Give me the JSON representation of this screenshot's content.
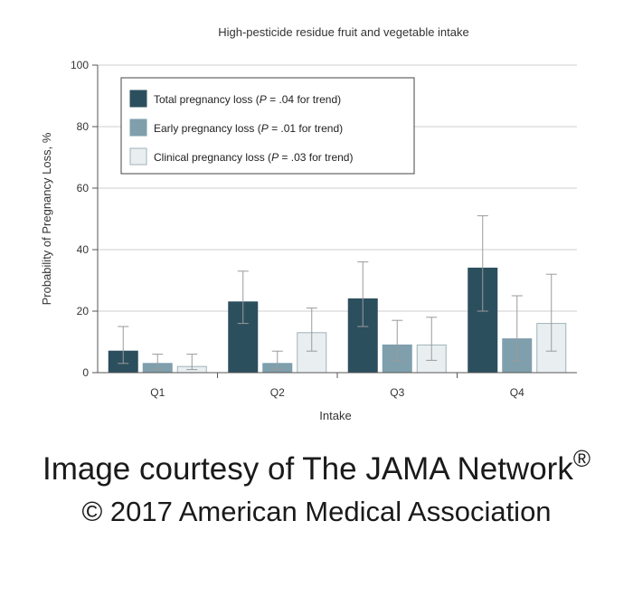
{
  "chart_data": {
    "type": "bar",
    "title": "High-pesticide residue fruit and vegetable intake",
    "xlabel": "Intake",
    "ylabel": "Probability of Pregnancy Loss, %",
    "ylim": [
      0,
      100
    ],
    "yticks": [
      0,
      20,
      40,
      60,
      80,
      100
    ],
    "categories": [
      "Q1",
      "Q2",
      "Q3",
      "Q4"
    ],
    "legend_position": "top-left",
    "series": [
      {
        "name": "Total pregnancy loss (P = .04 for trend)",
        "name_prefix": "Total pregnancy loss (",
        "name_suffix": " = .04 for trend)",
        "color": "#2c4f5e",
        "values": [
          7,
          23,
          24,
          34
        ],
        "err_low": [
          3,
          16,
          15,
          20
        ],
        "err_high": [
          15,
          33,
          36,
          51
        ]
      },
      {
        "name": "Early pregnancy loss (P = .01 for trend)",
        "name_prefix": "Early pregnancy loss (",
        "name_suffix": " = .01 for trend)",
        "color": "#7f9fad",
        "values": [
          3,
          3,
          9,
          11
        ],
        "err_low": [
          1,
          1,
          4,
          4
        ],
        "err_high": [
          6,
          7,
          17,
          25
        ]
      },
      {
        "name": "Clinical pregnancy loss (P = .03 for trend)",
        "name_prefix": "Clinical pregnancy loss (",
        "name_suffix": " = .03 for trend)",
        "color": "#e9eff1",
        "values": [
          2,
          13,
          9,
          16
        ],
        "err_low": [
          1,
          7,
          4,
          7
        ],
        "err_high": [
          6,
          21,
          18,
          32
        ]
      }
    ],
    "p_symbol": "P"
  },
  "credits": {
    "line1": "Image courtesy of The JAMA Network",
    "registered_mark": "®",
    "line2": "© 2017 American Medical Association"
  }
}
